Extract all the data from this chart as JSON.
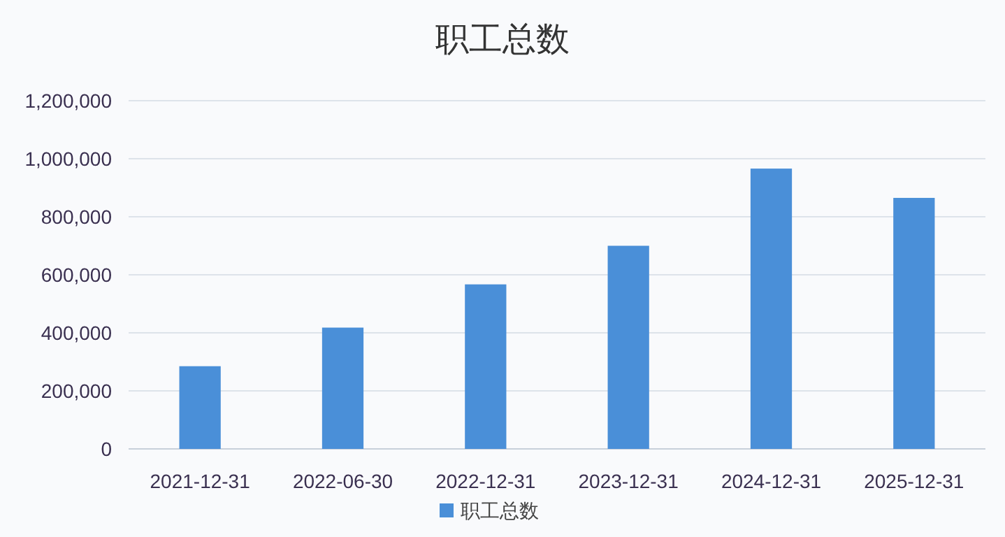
{
  "chart_data": {
    "type": "bar",
    "title": "职工总数",
    "categories": [
      "2021-12-31",
      "2022-06-30",
      "2022-12-31",
      "2023-12-31",
      "2024-12-31",
      "2025-12-31"
    ],
    "series": [
      {
        "name": "职工总数",
        "color": "#4a8fd8",
        "values": [
          285000,
          418000,
          567000,
          700000,
          966000,
          865000
        ]
      }
    ],
    "ylim": [
      0,
      1200000
    ],
    "yticks": [
      {
        "value": 0,
        "label": "0"
      },
      {
        "value": 200000,
        "label": "200,000"
      },
      {
        "value": 400000,
        "label": "400,000"
      },
      {
        "value": 600000,
        "label": "600,000"
      },
      {
        "value": 800000,
        "label": "800,000"
      },
      {
        "value": 1000000,
        "label": "1,000,000"
      },
      {
        "value": 1200000,
        "label": "1,200,000"
      }
    ],
    "grid": "y",
    "legend": "bottom"
  }
}
